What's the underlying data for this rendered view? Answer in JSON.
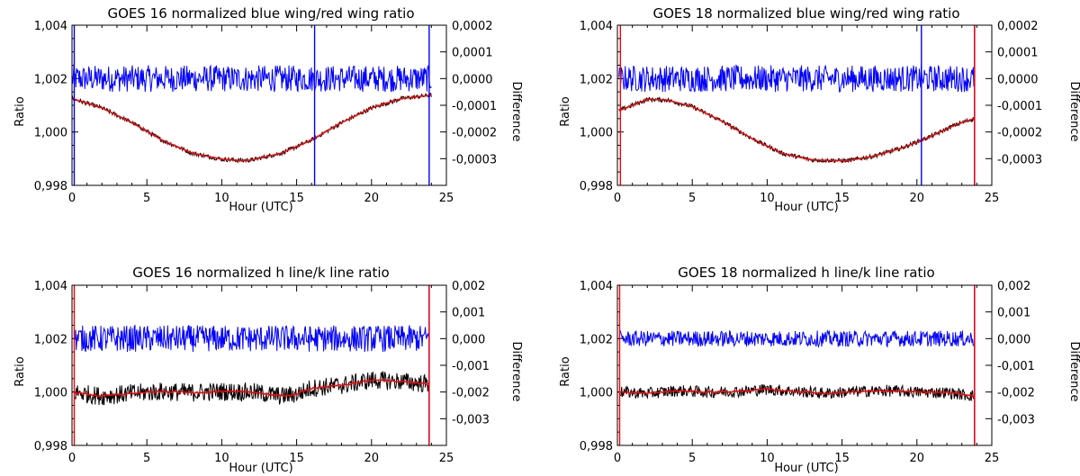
{
  "chart_data": [
    {
      "type": "line",
      "title": "GOES 16 normalized blue wing/red wing ratio",
      "xlabel": "Hour (UTC)",
      "ylabel": "Ratio",
      "y2label": "Difference",
      "xlim": [
        0,
        25
      ],
      "ylim": [
        0.998,
        1.004
      ],
      "y2lim": [
        -0.0004,
        0.0002
      ],
      "xticks": [
        "0",
        "5",
        "10",
        "15",
        "20",
        "25"
      ],
      "yticks": [
        "0,998",
        "1,000",
        "1,002",
        "1,004"
      ],
      "y2ticks": [
        "-0,0003",
        "-0,0002",
        "-0,0001",
        "0,0000",
        "0,0001",
        "0,0002"
      ],
      "colors": {
        "data": "#000000",
        "fit": "#ff0000",
        "difference": "#0000ff"
      },
      "series": [
        {
          "role": "data",
          "x": [
            0,
            2,
            4,
            6,
            8,
            10,
            11.3,
            12,
            14,
            16,
            18,
            20,
            22,
            24
          ],
          "y": [
            1.00125,
            1.0009,
            1.00035,
            0.9997,
            0.99921,
            0.99898,
            0.99893,
            0.99895,
            0.99921,
            0.9997,
            1.00035,
            1.0009,
            1.00125,
            1.00138
          ]
        },
        {
          "role": "fit",
          "x": [
            0,
            2,
            4,
            6,
            8,
            10,
            11.3,
            12,
            14,
            16,
            18,
            20,
            22,
            24
          ],
          "y": [
            1.00125,
            1.0009,
            1.00035,
            0.9997,
            0.99921,
            0.99898,
            0.99893,
            0.99895,
            0.99921,
            0.9997,
            1.00035,
            1.0009,
            1.00125,
            1.00138
          ]
        },
        {
          "role": "difference",
          "center": 0.0,
          "halfwidth": 5e-05
        }
      ],
      "annotations": [
        {
          "type": "vline",
          "x": 0.15,
          "color": "#0000ff"
        },
        {
          "type": "vline",
          "x": 16.2,
          "color": "#0000ff"
        },
        {
          "type": "vline",
          "x": 23.85,
          "color": "#0000ff"
        }
      ]
    },
    {
      "type": "line",
      "title": "GOES 18 normalized blue wing/red wing ratio",
      "xlabel": "Hour (UTC)",
      "ylabel": "Ratio",
      "y2label": "Difference",
      "xlim": [
        0,
        25
      ],
      "ylim": [
        0.998,
        1.004
      ],
      "y2lim": [
        -0.0004,
        0.0002
      ],
      "xticks": [
        "0",
        "5",
        "10",
        "15",
        "20",
        "25"
      ],
      "yticks": [
        "0,998",
        "1,000",
        "1,002",
        "1,004"
      ],
      "y2ticks": [
        "-0,0003",
        "-0,0002",
        "-0,0001",
        "0,0000",
        "0,0001",
        "0,0002"
      ],
      "colors": {
        "data": "#000000",
        "fit": "#ff0000",
        "difference": "#0000ff"
      },
      "series": [
        {
          "role": "data",
          "x": [
            0.1,
            1,
            2,
            3.3,
            5,
            7,
            9,
            11,
            13,
            15.3,
            17,
            19,
            21,
            22.5,
            23.8
          ],
          "y": [
            1.0008,
            1.001,
            1.00122,
            1.0012,
            1.00095,
            1.0004,
            0.99975,
            0.9992,
            0.99895,
            0.99892,
            0.99908,
            0.9994,
            0.99985,
            1.00025,
            1.0005
          ]
        },
        {
          "role": "fit",
          "x": [
            0.1,
            1,
            2,
            3.3,
            5,
            7,
            9,
            11,
            13,
            15.3,
            17,
            19,
            21,
            22.5,
            23.8
          ],
          "y": [
            1.0008,
            1.001,
            1.00122,
            1.0012,
            1.00095,
            1.0004,
            0.99975,
            0.9992,
            0.99895,
            0.99892,
            0.99908,
            0.9994,
            0.99985,
            1.00025,
            1.0005
          ]
        },
        {
          "role": "difference",
          "center": 0.0,
          "halfwidth": 5e-05
        }
      ],
      "annotations": [
        {
          "type": "vline",
          "x": 0.2,
          "color": "#ff0000"
        },
        {
          "type": "vline",
          "x": 20.3,
          "color": "#0000ff"
        },
        {
          "type": "vline",
          "x": 23.85,
          "color": "#0000ff"
        },
        {
          "type": "vline",
          "x": 23.85,
          "color": "#ff0000"
        }
      ]
    },
    {
      "type": "line",
      "title": "GOES 16 normalized h line/k line ratio",
      "xlabel": "Hour (UTC)",
      "ylabel": "Ratio",
      "y2label": "Difference",
      "xlim": [
        0,
        25
      ],
      "ylim": [
        0.998,
        1.004
      ],
      "y2lim": [
        -0.004,
        0.002
      ],
      "xticks": [
        "0",
        "5",
        "10",
        "15",
        "20",
        "25"
      ],
      "yticks": [
        "0,998",
        "1,000",
        "1,002",
        "1,004"
      ],
      "y2ticks": [
        "-0,003",
        "-0,002",
        "-0,001",
        "0,000",
        "0,001",
        "0,002"
      ],
      "colors": {
        "data": "#000000",
        "fit": "#ff0000",
        "difference": "#0000ff"
      },
      "series": [
        {
          "role": "data",
          "x": [
            0.2,
            2,
            4,
            6,
            8,
            10,
            12,
            14,
            15,
            16,
            18,
            20,
            22,
            23.8
          ],
          "y": [
            0.99998,
            0.99985,
            0.99995,
            1.00002,
            0.99998,
            1.00002,
            1.0,
            0.99985,
            0.99992,
            1.00015,
            1.00025,
            1.00045,
            1.0004,
            1.0003
          ]
        },
        {
          "role": "fit",
          "x": [
            0.2,
            2,
            4,
            6,
            8,
            10,
            12,
            14,
            15,
            16,
            18,
            20,
            22,
            23.8
          ],
          "y": [
            0.99998,
            0.99985,
            0.99995,
            1.00002,
            0.99998,
            1.00002,
            1.0,
            0.99985,
            0.99992,
            1.00015,
            1.00025,
            1.00045,
            1.0004,
            1.0003
          ]
        },
        {
          "role": "difference",
          "center": 0.0,
          "halfwidth": 0.0005
        }
      ],
      "annotations": [
        {
          "type": "vline",
          "x": 0.15,
          "color": "#ff0000"
        },
        {
          "type": "vline",
          "x": 23.85,
          "color": "#0000ff"
        },
        {
          "type": "vline",
          "x": 23.85,
          "color": "#ff0000"
        }
      ]
    },
    {
      "type": "line",
      "title": "GOES 18 normalized h line/k line ratio",
      "xlabel": "Hour (UTC)",
      "ylabel": "Ratio",
      "y2label": "Difference",
      "xlim": [
        0,
        25
      ],
      "ylim": [
        0.998,
        1.004
      ],
      "y2lim": [
        -0.004,
        0.002
      ],
      "xticks": [
        "0",
        "5",
        "10",
        "15",
        "20",
        "25"
      ],
      "yticks": [
        "0,998",
        "1,000",
        "1,002",
        "1,004"
      ],
      "y2ticks": [
        "-0,003",
        "-0,002",
        "-0,001",
        "0,000",
        "0,001",
        "0,002"
      ],
      "colors": {
        "data": "#000000",
        "fit": "#ff0000",
        "difference": "#0000ff"
      },
      "series": [
        {
          "role": "data",
          "x": [
            0.2,
            2,
            4,
            6,
            8,
            10,
            12,
            14,
            16,
            18,
            20,
            22,
            23.8
          ],
          "y": [
            1.0,
            0.99995,
            1.00005,
            1.0,
            1.00002,
            1.0001,
            1.00002,
            0.99995,
            1.00002,
            1.00005,
            1.0,
            0.99998,
            0.99985
          ]
        },
        {
          "role": "fit",
          "x": [
            0.2,
            2,
            4,
            6,
            8,
            10,
            12,
            14,
            16,
            18,
            20,
            22,
            23.8
          ],
          "y": [
            1.0,
            0.99995,
            1.00005,
            1.0,
            1.00002,
            1.0001,
            1.00002,
            0.99995,
            1.00002,
            1.00005,
            1.0,
            0.99998,
            0.99985
          ]
        },
        {
          "role": "difference",
          "center": 0.0,
          "halfwidth": 0.0003
        }
      ],
      "annotations": [
        {
          "type": "vline",
          "x": 0.15,
          "color": "#ff0000"
        },
        {
          "type": "vline",
          "x": 23.85,
          "color": "#0000ff"
        },
        {
          "type": "vline",
          "x": 23.85,
          "color": "#ff0000"
        }
      ]
    }
  ]
}
